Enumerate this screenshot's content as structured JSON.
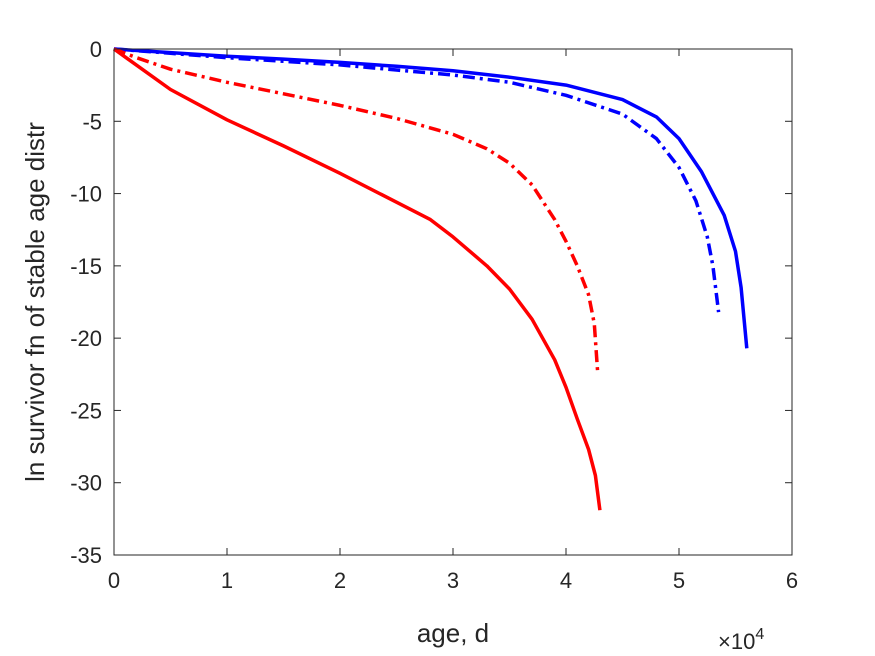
{
  "chart_data": {
    "type": "line",
    "title": "",
    "xlabel": "age, d",
    "ylabel": "ln survivor fn of stable age distr",
    "x_exponent_label": {
      "base": "×10",
      "exponent": "4"
    },
    "xlim": [
      0,
      60000
    ],
    "ylim": [
      -35,
      0
    ],
    "x_ticks": [
      0,
      10000,
      20000,
      30000,
      40000,
      50000,
      60000
    ],
    "x_tick_labels": [
      "0",
      "1",
      "2",
      "3",
      "4",
      "5",
      "6"
    ],
    "y_ticks": [
      0,
      -5,
      -10,
      -15,
      -20,
      -25,
      -30,
      -35
    ],
    "y_tick_labels": [
      "0",
      "-5",
      "-10",
      "-15",
      "-20",
      "-25",
      "-30",
      "-35"
    ],
    "grid": false,
    "legend": "none",
    "series": [
      {
        "color": "#0000ff",
        "style": "solid",
        "points": [
          [
            0,
            0
          ],
          [
            5000,
            -0.25
          ],
          [
            10000,
            -0.5
          ],
          [
            15000,
            -0.7
          ],
          [
            20000,
            -0.93
          ],
          [
            25000,
            -1.2
          ],
          [
            30000,
            -1.5
          ],
          [
            35000,
            -1.95
          ],
          [
            40000,
            -2.5
          ],
          [
            45000,
            -3.5
          ],
          [
            48000,
            -4.7
          ],
          [
            50000,
            -6.2
          ],
          [
            52000,
            -8.5
          ],
          [
            54000,
            -11.5
          ],
          [
            55000,
            -14.0
          ],
          [
            55500,
            -16.5
          ],
          [
            56000,
            -20.7
          ]
        ]
      },
      {
        "color": "#0000ff",
        "style": "dashdot",
        "points": [
          [
            0,
            0
          ],
          [
            5000,
            -0.3
          ],
          [
            10000,
            -0.6
          ],
          [
            15000,
            -0.85
          ],
          [
            20000,
            -1.1
          ],
          [
            25000,
            -1.45
          ],
          [
            30000,
            -1.8
          ],
          [
            35000,
            -2.3
          ],
          [
            40000,
            -3.2
          ],
          [
            45000,
            -4.5
          ],
          [
            48000,
            -6.2
          ],
          [
            50000,
            -8.2
          ],
          [
            51500,
            -10.5
          ],
          [
            52500,
            -13.0
          ],
          [
            53000,
            -15.0
          ],
          [
            53500,
            -18.2
          ]
        ]
      },
      {
        "color": "#ff0000",
        "style": "solid",
        "points": [
          [
            0,
            0
          ],
          [
            5000,
            -2.8
          ],
          [
            10000,
            -4.9
          ],
          [
            15000,
            -6.7
          ],
          [
            20000,
            -8.6
          ],
          [
            25000,
            -10.6
          ],
          [
            28000,
            -11.8
          ],
          [
            30000,
            -13.0
          ],
          [
            33000,
            -15.0
          ],
          [
            35000,
            -16.6
          ],
          [
            37000,
            -18.7
          ],
          [
            39000,
            -21.5
          ],
          [
            40000,
            -23.4
          ],
          [
            41000,
            -25.6
          ],
          [
            42000,
            -27.7
          ],
          [
            42600,
            -29.5
          ],
          [
            43000,
            -31.9
          ]
        ]
      },
      {
        "color": "#ff0000",
        "style": "dashdot",
        "points": [
          [
            0,
            0
          ],
          [
            2000,
            -0.6
          ],
          [
            5000,
            -1.4
          ],
          [
            10000,
            -2.3
          ],
          [
            15000,
            -3.1
          ],
          [
            20000,
            -3.9
          ],
          [
            25000,
            -4.8
          ],
          [
            30000,
            -5.9
          ],
          [
            33000,
            -6.9
          ],
          [
            35000,
            -7.9
          ],
          [
            37000,
            -9.4
          ],
          [
            39000,
            -11.8
          ],
          [
            40000,
            -13.3
          ],
          [
            41000,
            -15.0
          ],
          [
            42000,
            -17.0
          ],
          [
            42500,
            -19.0
          ],
          [
            42800,
            -22.3
          ]
        ]
      }
    ]
  }
}
